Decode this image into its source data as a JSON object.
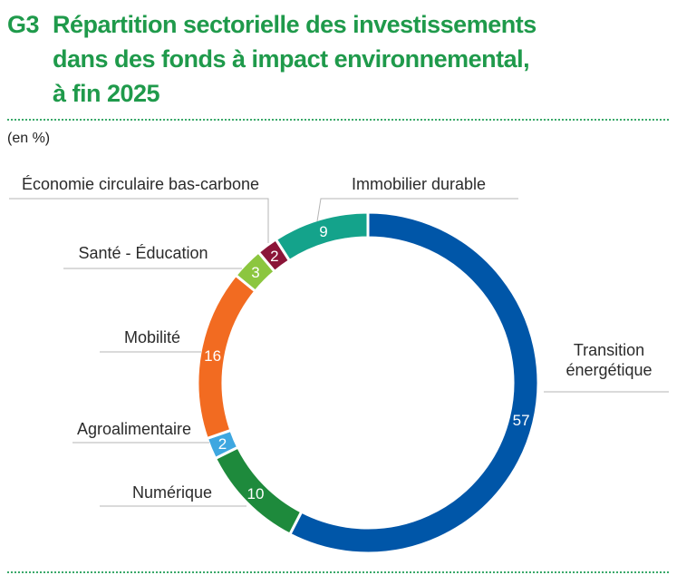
{
  "header": {
    "figure_number": "G3",
    "title_lines": [
      "Répartition sectorielle des investissements",
      "dans des fonds à impact environnemental,",
      "à fin 2025"
    ],
    "unit": "(en %)"
  },
  "chart_data": {
    "type": "pie",
    "style": "donut",
    "title": "Répartition sectorielle des investissements dans des fonds à impact environnemental, à fin 2025",
    "unit": "(en %)",
    "slices": [
      {
        "label": "Transition énergétique",
        "value": 57,
        "color": "#0056a8"
      },
      {
        "label": "Numérique",
        "value": 10,
        "color": "#1e8a3c"
      },
      {
        "label": "Agroalimentaire",
        "value": 2,
        "color": "#3ea7e0"
      },
      {
        "label": "Mobilité",
        "value": 16,
        "color": "#f26b21"
      },
      {
        "label": "Santé - Éducation",
        "value": 3,
        "color": "#8cc63f"
      },
      {
        "label": "Économie circulaire bas-carbone",
        "value": 2,
        "color": "#8b1538"
      },
      {
        "label": "Immobilier durable",
        "value": 9,
        "color": "#14a38b"
      }
    ]
  }
}
